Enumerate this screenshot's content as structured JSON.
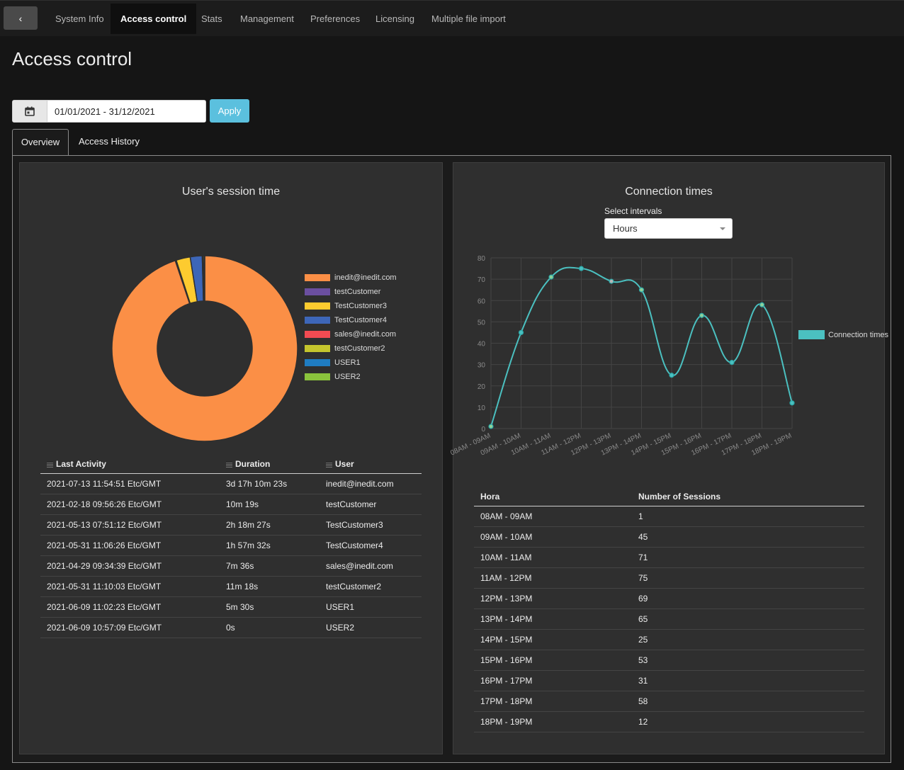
{
  "nav": {
    "back_label": "‹",
    "tabs": [
      "System Info",
      "Access control",
      "Stats",
      "Management",
      "Preferences",
      "Licensing",
      "Multiple file import"
    ],
    "active_tab": "Access control"
  },
  "page": {
    "title": "Access control"
  },
  "filter": {
    "date_range": "01/01/2021 - 31/12/2021",
    "apply_label": "Apply"
  },
  "subtabs": {
    "overview": "Overview",
    "history": "Access History"
  },
  "session_panel": {
    "title": "User's session time",
    "columns": [
      "Last Activity",
      "Duration",
      "User"
    ],
    "rows": [
      [
        "2021-07-13 11:54:51 Etc/GMT",
        "3d 17h 10m 23s",
        "inedit@inedit.com"
      ],
      [
        "2021-02-18 09:56:26 Etc/GMT",
        "10m 19s",
        "testCustomer"
      ],
      [
        "2021-05-13 07:51:12 Etc/GMT",
        "2h 18m 27s",
        "TestCustomer3"
      ],
      [
        "2021-05-31 11:06:26 Etc/GMT",
        "1h 57m 32s",
        "TestCustomer4"
      ],
      [
        "2021-04-29 09:34:39 Etc/GMT",
        "7m 36s",
        "sales@inedit.com"
      ],
      [
        "2021-05-31 11:10:03 Etc/GMT",
        "11m 18s",
        "testCustomer2"
      ],
      [
        "2021-06-09 11:02:23 Etc/GMT",
        "5m 30s",
        "USER1"
      ],
      [
        "2021-06-09 10:57:09 Etc/GMT",
        "0s",
        "USER2"
      ]
    ]
  },
  "connection_panel": {
    "title": "Connection times",
    "select_label": "Select intervals",
    "select_value": "Hours",
    "columns": [
      "Hora",
      "Number of Sessions"
    ]
  },
  "chart_data": [
    {
      "type": "pie",
      "title": "User's session time",
      "donut": true,
      "labels": [
        "inedit@inedit.com",
        "testCustomer",
        "TestCustomer3",
        "TestCustomer4",
        "sales@inedit.com",
        "testCustomer2",
        "USER1",
        "USER2"
      ],
      "values": [
        321023,
        619,
        8307,
        7052,
        456,
        678,
        330,
        0
      ],
      "colors": [
        "#fb8f46",
        "#6b4fa0",
        "#fdcb2f",
        "#3d66b8",
        "#f24b52",
        "#c4c52d",
        "#1f7cc1",
        "#8ac33c"
      ],
      "legend": "right"
    },
    {
      "type": "line",
      "title": "Connection times",
      "categories": [
        "08AM - 09AM",
        "09AM - 10AM",
        "10AM - 11AM",
        "11AM - 12PM",
        "12PM - 13PM",
        "13PM - 14PM",
        "14PM - 15PM",
        "15PM - 16PM",
        "16PM - 17PM",
        "17PM - 18PM",
        "18PM - 19PM"
      ],
      "series": [
        {
          "name": "Connection times",
          "values": [
            1,
            45,
            71,
            75,
            69,
            65,
            25,
            53,
            31,
            58,
            12
          ]
        }
      ],
      "ylim": [
        0,
        80
      ],
      "yticks": [
        0,
        10,
        20,
        30,
        40,
        50,
        60,
        70,
        80
      ],
      "grid": true,
      "line_color": "#4bc0c0",
      "point_colors": [
        "#8ed19a",
        "#4bc0c0",
        "#8ed19a",
        "#4bc0c0",
        "#b7b7b7",
        "#8ed19a",
        "#4bc0c0",
        "#8ed19a",
        "#4bc0c0",
        "#8ed19a",
        "#4bc0c0"
      ],
      "legend": "right"
    }
  ]
}
